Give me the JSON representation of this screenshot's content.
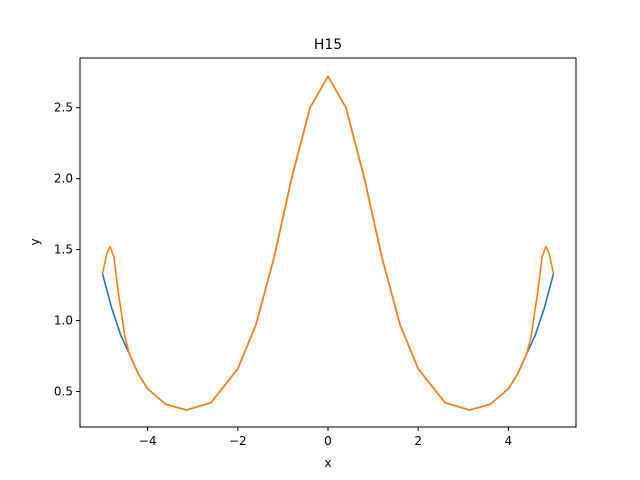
{
  "chart_data": {
    "type": "line",
    "title": "H15",
    "xlabel": "x",
    "ylabel": "y",
    "xlim": [
      -5.5,
      5.5
    ],
    "ylim": [
      0.25,
      2.85
    ],
    "xticks": [
      -4,
      -2,
      0,
      2,
      4
    ],
    "xtick_labels": [
      "−4",
      "−2",
      "0",
      "2",
      "4"
    ],
    "yticks": [
      0.5,
      1.0,
      1.5,
      2.0,
      2.5
    ],
    "ytick_labels": [
      "0.5",
      "1.0",
      "1.5",
      "2.0",
      "2.5"
    ],
    "grid": false,
    "series": [
      {
        "color": "#1f77b4",
        "function": "exp(cos(x))",
        "x": [
          -5.0,
          -4.8,
          -4.6,
          -4.4,
          -4.2,
          -4.0,
          -3.6,
          -3.14,
          -2.6,
          -2.0,
          -1.6,
          -1.2,
          -0.8,
          -0.4,
          0.0,
          0.4,
          0.8,
          1.2,
          1.6,
          2.0,
          2.6,
          3.14,
          3.6,
          4.0,
          4.2,
          4.4,
          4.6,
          4.8,
          5.0
        ],
        "y": [
          1.33,
          1.09,
          0.9,
          0.76,
          0.62,
          0.52,
          0.41,
          0.37,
          0.42,
          0.66,
          0.97,
          1.44,
          2.01,
          2.5,
          2.72,
          2.5,
          2.01,
          1.44,
          0.97,
          0.66,
          0.42,
          0.37,
          0.41,
          0.52,
          0.62,
          0.76,
          0.9,
          1.09,
          1.33
        ]
      },
      {
        "color": "#ff7f0e",
        "function": "degree-15 interpolant of exp(cos(x))",
        "x": [
          -5.0,
          -4.9,
          -4.83,
          -4.75,
          -4.65,
          -4.5,
          -4.4,
          -4.2,
          -4.0,
          -3.6,
          -3.14,
          -2.6,
          -2.0,
          -1.6,
          -1.2,
          -0.8,
          -0.4,
          0.0,
          0.4,
          0.8,
          1.2,
          1.6,
          2.0,
          2.6,
          3.14,
          3.6,
          4.0,
          4.2,
          4.4,
          4.5,
          4.65,
          4.75,
          4.83,
          4.9,
          5.0
        ],
        "y": [
          1.33,
          1.48,
          1.52,
          1.45,
          1.2,
          0.88,
          0.76,
          0.62,
          0.52,
          0.41,
          0.37,
          0.42,
          0.66,
          0.97,
          1.44,
          2.01,
          2.5,
          2.72,
          2.5,
          2.01,
          1.44,
          0.97,
          0.66,
          0.42,
          0.37,
          0.41,
          0.52,
          0.62,
          0.76,
          0.88,
          1.2,
          1.45,
          1.52,
          1.48,
          1.33
        ]
      }
    ]
  }
}
